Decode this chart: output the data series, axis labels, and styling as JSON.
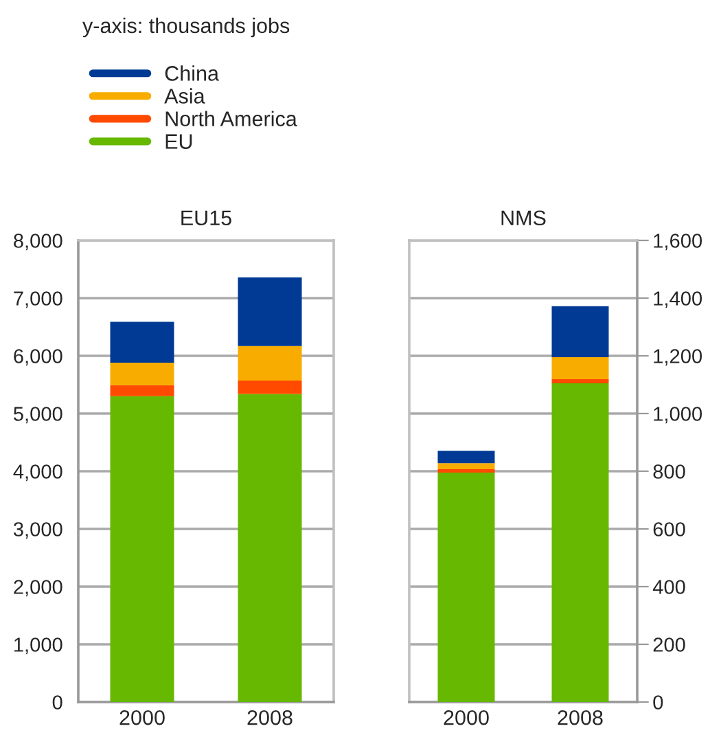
{
  "chart_data": [
    {
      "type": "bar",
      "title": "EU15",
      "categories": [
        "2000",
        "2008"
      ],
      "stacked": true,
      "ylim": [
        0,
        8000
      ],
      "yticks": [
        0,
        {
          "value": 1000,
          "label": "1,000"
        },
        {
          "value": 2000,
          "label": "2,000"
        },
        {
          "value": 3000,
          "label": "3,000"
        },
        {
          "value": 4000,
          "label": "4,000"
        },
        {
          "value": 5000,
          "label": "5,000"
        },
        {
          "value": 6000,
          "label": "6,000"
        },
        {
          "value": 7000,
          "label": "7,000"
        },
        {
          "value": 8000,
          "label": "8,000"
        }
      ],
      "grid": "y",
      "legend": "top left",
      "annotations": [
        "y-axis: thousands jobs"
      ],
      "series": [
        {
          "name": "EU",
          "color": "#66b800",
          "values": [
            5300,
            5340
          ]
        },
        {
          "name": "North America",
          "color": "#ff4a00",
          "values": [
            190,
            230
          ]
        },
        {
          "name": "Asia",
          "color": "#f8ac00",
          "values": [
            390,
            600
          ]
        },
        {
          "name": "China",
          "color": "#003a94",
          "values": [
            710,
            1190
          ]
        }
      ]
    },
    {
      "type": "bar",
      "title": "NMS",
      "categories": [
        "2000",
        "2008"
      ],
      "stacked": true,
      "y2lim": [
        0,
        1600
      ],
      "y2ticks": [
        0,
        200,
        400,
        600,
        800,
        {
          "value": 1000,
          "label": "1,000"
        },
        {
          "value": 1200,
          "label": "1,200"
        },
        {
          "value": 1400,
          "label": "1,400"
        },
        {
          "value": 1600,
          "label": "1,600"
        }
      ],
      "grid": "y",
      "series": [
        {
          "color": "#66b800",
          "values": [
            795,
            1105
          ],
          "axis": "y2"
        },
        {
          "color": "#ff4a00",
          "values": [
            12,
            14
          ],
          "axis": "y2"
        },
        {
          "color": "#f8ac00",
          "values": [
            21,
            76
          ],
          "axis": "y2"
        },
        {
          "color": "#003a94",
          "values": [
            43,
            177
          ],
          "axis": "y2"
        }
      ]
    }
  ]
}
